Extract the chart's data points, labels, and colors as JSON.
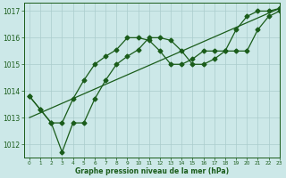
{
  "bg_color": "#cce8e8",
  "grid_color": "#aacccc",
  "line_color": "#1a5c1a",
  "title": "Graphe pression niveau de la mer (hPa)",
  "xlim": [
    -0.5,
    23
  ],
  "ylim": [
    1011.5,
    1017.3
  ],
  "yticks": [
    1012,
    1013,
    1014,
    1015,
    1016,
    1017
  ],
  "xticks": [
    0,
    1,
    2,
    3,
    4,
    5,
    6,
    7,
    8,
    9,
    10,
    11,
    12,
    13,
    14,
    15,
    16,
    17,
    18,
    19,
    20,
    21,
    22,
    23
  ],
  "line1_x": [
    0,
    1,
    2,
    3,
    4,
    5,
    6,
    7,
    8,
    9,
    10,
    11,
    12,
    13,
    14,
    15,
    16,
    17,
    18,
    19,
    20,
    21,
    22,
    23
  ],
  "line1_y": [
    1013.8,
    1013.3,
    1012.8,
    1012.8,
    1013.7,
    1014.4,
    1015.0,
    1015.3,
    1015.55,
    1016.0,
    1016.0,
    1015.9,
    1015.5,
    1015.0,
    1015.0,
    1015.2,
    1015.5,
    1015.5,
    1015.5,
    1016.3,
    1016.8,
    1017.0,
    1017.0,
    1017.1
  ],
  "line2_x": [
    0,
    1,
    2,
    3,
    4,
    5,
    6,
    7,
    8,
    9,
    10,
    11,
    12,
    13,
    14,
    15,
    16,
    17,
    18,
    19,
    20,
    21,
    22,
    23
  ],
  "line2_y": [
    1013.8,
    1013.3,
    1012.8,
    1011.7,
    1012.8,
    1012.8,
    1013.7,
    1014.4,
    1015.0,
    1015.3,
    1015.55,
    1016.0,
    1016.0,
    1015.9,
    1015.5,
    1015.0,
    1015.0,
    1015.2,
    1015.5,
    1015.5,
    1015.5,
    1016.3,
    1016.8,
    1017.0
  ],
  "line3_x": [
    0,
    23
  ],
  "line3_y": [
    1013.0,
    1017.1
  ]
}
